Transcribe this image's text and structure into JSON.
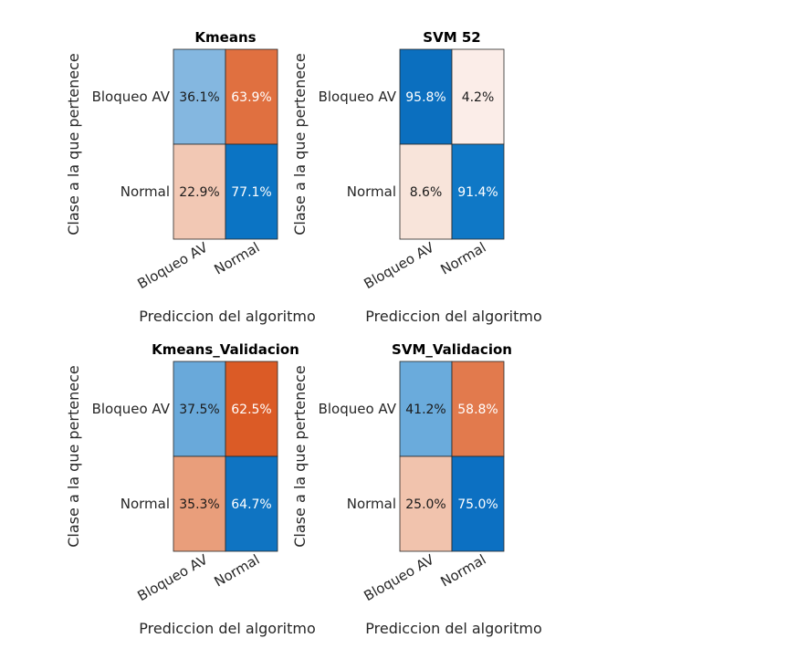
{
  "chart_data": [
    {
      "type": "heatmap",
      "title": "Kmeans",
      "xlabel": "Prediccion del algoritmo",
      "ylabel": "Clase a la que pertenece",
      "rows": [
        "Bloqueo AV",
        "Normal"
      ],
      "cols": [
        "Bloqueo AV",
        "Normal"
      ],
      "values": [
        [
          36.1,
          63.9
        ],
        [
          22.9,
          77.1
        ]
      ],
      "cell_labels": [
        [
          "36.1%",
          "63.9%"
        ],
        [
          "22.9%",
          "77.1%"
        ]
      ],
      "cell_colors": [
        [
          "#84b7e0",
          "#e07040"
        ],
        [
          "#f2c8b4",
          "#0b74c4"
        ]
      ]
    },
    {
      "type": "heatmap",
      "title": "SVM 52",
      "xlabel": "Prediccion del algoritmo",
      "ylabel": "Clase a la que pertenece",
      "rows": [
        "Bloqueo AV",
        "Normal"
      ],
      "cols": [
        "Bloqueo AV",
        "Normal"
      ],
      "values": [
        [
          95.8,
          4.2
        ],
        [
          8.6,
          91.4
        ]
      ],
      "cell_labels": [
        [
          "95.8%",
          "4.2%"
        ],
        [
          "8.6%",
          "91.4%"
        ]
      ],
      "cell_colors": [
        [
          "#0b6fbf",
          "#fbede8"
        ],
        [
          "#f8e4da",
          "#0f78c6"
        ]
      ]
    },
    {
      "type": "heatmap",
      "title": "Kmeans_Validacion",
      "xlabel": "Prediccion del algoritmo",
      "ylabel": "Clase a la que pertenece",
      "rows": [
        "Bloqueo AV",
        "Normal"
      ],
      "cols": [
        "Bloqueo AV",
        "Normal"
      ],
      "values": [
        [
          37.5,
          62.5
        ],
        [
          35.3,
          64.7
        ]
      ],
      "cell_labels": [
        [
          "37.5%",
          "62.5%"
        ],
        [
          "35.3%",
          "64.7%"
        ]
      ],
      "cell_colors": [
        [
          "#69a9da",
          "#db5b26"
        ],
        [
          "#e99e7b",
          "#0f74c2"
        ]
      ]
    },
    {
      "type": "heatmap",
      "title": "SVM_Validacion",
      "xlabel": "Prediccion del algoritmo",
      "ylabel": "Clase a la que pertenece",
      "rows": [
        "Bloqueo AV",
        "Normal"
      ],
      "cols": [
        "Bloqueo AV",
        "Normal"
      ],
      "values": [
        [
          41.2,
          58.8
        ],
        [
          25.0,
          75.0
        ]
      ],
      "cell_labels": [
        [
          "41.2%",
          "58.8%"
        ],
        [
          "25.0%",
          "75.0%"
        ]
      ],
      "cell_colors": [
        [
          "#6aabdc",
          "#e27a4d"
        ],
        [
          "#f1c3ad",
          "#0c70c2"
        ]
      ]
    }
  ]
}
